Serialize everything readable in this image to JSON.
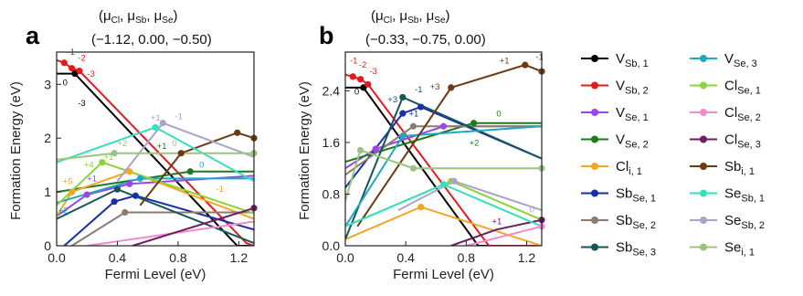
{
  "figure": {
    "panels": [
      {
        "letter": "a",
        "header": {
          "label_open": "(μ",
          "labels": [
            "Cl",
            "Sb",
            "Se"
          ],
          "label_close": ")",
          "values": "(−1.12,  0.00,   −0.50)"
        }
      },
      {
        "letter": "b",
        "header": {
          "label_open": "(μ",
          "labels": [
            "Cl",
            "Sb",
            "Se"
          ],
          "label_close": ")",
          "values": "(−0.33,   −0.75,   0.00)"
        }
      }
    ]
  },
  "legend": {
    "columns": [
      [
        {
          "main": "V",
          "sub": "Sb, 1",
          "color": "#000000"
        },
        {
          "main": "V",
          "sub": "Sb, 2",
          "color": "#e41a1c"
        },
        {
          "main": "V",
          "sub": "Se, 1",
          "color": "#9b45e5"
        },
        {
          "main": "V",
          "sub": "Se, 2",
          "color": "#1e7a1e"
        },
        {
          "main": "Cl",
          "sub": "i, 1",
          "color": "#f5a623"
        },
        {
          "main": "Sb",
          "sub": "Se, 1",
          "color": "#1a2fa6"
        },
        {
          "main": "Sb",
          "sub": "Se, 2",
          "color": "#8c7b70"
        },
        {
          "main": "Sb",
          "sub": "Se, 3",
          "color": "#13575a"
        }
      ],
      [
        {
          "main": "V",
          "sub": "Se, 3",
          "color": "#1fa8c0"
        },
        {
          "main": "Cl",
          "sub": "Se, 1",
          "color": "#8bd43a"
        },
        {
          "main": "Cl",
          "sub": "Se, 2",
          "color": "#f28ad0"
        },
        {
          "main": "Cl",
          "sub": "Se, 3",
          "color": "#6b1f5f"
        },
        {
          "main": "Sb",
          "sub": "i, 1",
          "color": "#6b3a12"
        },
        {
          "main": "Se",
          "sub": "Sb, 1",
          "color": "#35e0bd"
        },
        {
          "main": "Se",
          "sub": "Sb, 2",
          "color": "#a9a3cc"
        },
        {
          "main": "Se",
          "sub": "i, 1",
          "color": "#9cc47d"
        }
      ]
    ]
  },
  "chart_data": [
    {
      "type": "line",
      "panel": "a",
      "xlabel": "Fermi Level (eV)",
      "ylabel": "Formation Energy (eV)",
      "xlim": [
        0,
        1.3
      ],
      "ylim": [
        0,
        3.6
      ],
      "xticks": [
        "0.0",
        "0.4",
        "0.8",
        "1.2"
      ],
      "xtick_values": [
        0,
        0.4,
        0.8,
        1.2
      ],
      "yticks": [
        "0",
        "1",
        "2",
        "3"
      ],
      "ytick_values": [
        0,
        1,
        2,
        3
      ],
      "series": [
        {
          "name": "V_Sb,1",
          "color": "#000000",
          "x": [
            0,
            0.12,
            1.19,
            1.3
          ],
          "y": [
            3.2,
            3.2,
            0,
            0
          ],
          "dots": [
            0.12
          ]
        },
        {
          "name": "V_Sb,2",
          "color": "#e41a1c",
          "x": [
            0,
            0.05,
            0.1,
            0.15,
            1.25,
            1.3
          ],
          "y": [
            3.45,
            3.4,
            3.3,
            3.25,
            0.05,
            0
          ],
          "dots": [
            0.05,
            0.1,
            0.15
          ]
        },
        {
          "name": "V_Se,1",
          "color": "#9b45e5",
          "x": [
            0,
            0.2,
            0.48,
            1.3
          ],
          "y": [
            0.55,
            0.95,
            1.15,
            1.3
          ],
          "dots": [
            0.2,
            0.48
          ]
        },
        {
          "name": "V_Se,2",
          "color": "#1e7a1e",
          "x": [
            0,
            0.88,
            1.3
          ],
          "y": [
            1.0,
            1.38,
            1.38
          ],
          "dots": [
            0.88
          ]
        },
        {
          "name": "Cl_i,1",
          "color": "#f5a623",
          "x": [
            0,
            0.1,
            0.48,
            1.3
          ],
          "y": [
            0.55,
            1.0,
            1.38,
            0.5
          ],
          "dots": [
            0.1,
            0.48
          ]
        },
        {
          "name": "Sb_Se,1",
          "color": "#1a2fa6",
          "x": [
            0.05,
            0.38,
            0.52,
            1.3
          ],
          "y": [
            0,
            0.82,
            0.93,
            0.3
          ],
          "dots": [
            0.38,
            0.52
          ]
        },
        {
          "name": "Sb_Se,2",
          "color": "#8c7b70",
          "x": [
            0.1,
            0.45,
            1.3
          ],
          "y": [
            0,
            0.62,
            0.62
          ],
          "dots": [
            0.45
          ]
        },
        {
          "name": "Sb_Se,3",
          "color": "#13575a",
          "x": [
            0.0,
            0.4,
            1.3
          ],
          "y": [
            0.5,
            1.05,
            0.05
          ],
          "dots": [
            0.4
          ]
        },
        {
          "name": "V_Se,3",
          "color": "#1fa8c0",
          "x": [
            0,
            0.55,
            1.3
          ],
          "y": [
            0.8,
            1.25,
            1.25
          ],
          "dots": [
            0.55
          ]
        },
        {
          "name": "Cl_Se,1",
          "color": "#8bd43a",
          "x": [
            0,
            0.3,
            1.3
          ],
          "y": [
            0.75,
            1.55,
            0.6
          ],
          "dots": [
            0.3
          ]
        },
        {
          "name": "Cl_Se,2",
          "color": "#f28ad0",
          "x": [
            0.2,
            1.3
          ],
          "y": [
            0,
            0.45
          ],
          "dots": []
        },
        {
          "name": "Cl_Se,3",
          "color": "#6b1f5f",
          "x": [
            0.5,
            1.3
          ],
          "y": [
            0,
            0.7
          ],
          "dots": [
            1.3
          ]
        },
        {
          "name": "Sb_i,1",
          "color": "#6b3a12",
          "x": [
            0.55,
            0.82,
            1.19,
            1.3
          ],
          "y": [
            0.75,
            1.72,
            2.1,
            2.0
          ],
          "dots": [
            0.82,
            1.19,
            1.3
          ]
        },
        {
          "name": "Se_Sb,1",
          "color": "#35e0bd",
          "x": [
            0,
            0.65,
            1.3
          ],
          "y": [
            1.55,
            2.2,
            1.2
          ],
          "dots": [
            0.65
          ]
        },
        {
          "name": "Se_Sb,2",
          "color": "#a9a3cc",
          "x": [
            0.4,
            0.7,
            1.3
          ],
          "y": [
            1.2,
            2.28,
            1.65
          ],
          "dots": [
            0.7
          ]
        },
        {
          "name": "Se_i,1",
          "color": "#9cc47d",
          "x": [
            0,
            0.38,
            1.3
          ],
          "y": [
            1.6,
            1.72,
            1.72
          ],
          "dots": [
            0.38,
            1.3
          ]
        }
      ],
      "annotations": [
        {
          "text": "-1",
          "x": 0.07,
          "y": 3.55,
          "color": "#e41a1c"
        },
        {
          "text": "-2",
          "x": 0.14,
          "y": 3.44,
          "color": "#e41a1c"
        },
        {
          "text": "-3",
          "x": 0.2,
          "y": 3.14,
          "color": "#e41a1c"
        },
        {
          "text": "0",
          "x": 0.04,
          "y": 2.98,
          "color": "#000000"
        },
        {
          "text": "-3",
          "x": 0.14,
          "y": 2.6,
          "color": "#000000"
        },
        {
          "text": "+5",
          "x": 0.04,
          "y": 1.15,
          "color": "#f5a623"
        },
        {
          "text": "+1",
          "x": 0.2,
          "y": 1.2,
          "color": "#9b45e5"
        },
        {
          "text": "+4",
          "x": 0.18,
          "y": 1.45,
          "color": "#8bd43a"
        },
        {
          "text": "+1",
          "x": 0.31,
          "y": 1.6,
          "color": "#8bd43a"
        },
        {
          "text": "+2",
          "x": 0.4,
          "y": 1.85,
          "color": "#9cc47d"
        },
        {
          "text": "+2",
          "x": 0.01,
          "y": 0.6,
          "color": "#1fa8c0"
        },
        {
          "text": "+1",
          "x": 0.62,
          "y": 2.33,
          "color": "#a9a3cc"
        },
        {
          "text": "-1",
          "x": 0.78,
          "y": 2.35,
          "color": "#a9a3cc"
        },
        {
          "text": "0",
          "x": 0.76,
          "y": 1.85,
          "color": "#9cc47d"
        },
        {
          "text": "0",
          "x": 0.94,
          "y": 1.45,
          "color": "#1fa8c0"
        },
        {
          "text": "-1",
          "x": 1.05,
          "y": 1.0,
          "color": "#f5a623"
        },
        {
          "text": "+1",
          "x": 0.66,
          "y": 1.8,
          "color": "#1e7a1e"
        }
      ]
    },
    {
      "type": "line",
      "panel": "b",
      "xlabel": "Fermi Level (eV)",
      "ylabel": "Formation Energy (eV)",
      "xlim": [
        0,
        1.3
      ],
      "ylim": [
        0,
        3.0
      ],
      "xticks": [
        "0.0",
        "0.4",
        "0.8",
        "1.2"
      ],
      "xtick_values": [
        0,
        0.4,
        0.8,
        1.2
      ],
      "yticks": [
        "0.0",
        "0.8",
        "1.6",
        "2.4"
      ],
      "ytick_values": [
        0,
        0.8,
        1.6,
        2.4
      ],
      "series": [
        {
          "name": "V_Sb,1",
          "color": "#000000",
          "x": [
            0,
            0.12,
            0.88,
            1.3
          ],
          "y": [
            2.45,
            2.45,
            0,
            0
          ],
          "dots": [
            0.12
          ]
        },
        {
          "name": "V_Sb,2",
          "color": "#e41a1c",
          "x": [
            0,
            0.05,
            0.1,
            0.15,
            0.95,
            1.3
          ],
          "y": [
            2.65,
            2.62,
            2.58,
            2.5,
            0,
            0
          ],
          "dots": [
            0.05,
            0.1,
            0.15
          ]
        },
        {
          "name": "V_Se,1",
          "color": "#9b45e5",
          "x": [
            0,
            0.2,
            0.65,
            1.3
          ],
          "y": [
            1.2,
            1.5,
            1.85,
            1.85
          ],
          "dots": [
            0.2,
            0.65
          ]
        },
        {
          "name": "V_Se,2",
          "color": "#1e7a1e",
          "x": [
            0,
            0.85,
            1.3
          ],
          "y": [
            1.3,
            1.9,
            1.9
          ],
          "dots": [
            0.85
          ]
        },
        {
          "name": "Cl_i,1",
          "color": "#f5a623",
          "x": [
            0,
            0.5,
            1.3
          ],
          "y": [
            0.1,
            0.6,
            0
          ],
          "dots": [
            0.5
          ]
        },
        {
          "name": "Sb_Se,1",
          "color": "#1a2fa6",
          "x": [
            0,
            0.38,
            0.5,
            1.3
          ],
          "y": [
            0.9,
            2.05,
            2.15,
            1.35
          ],
          "dots": [
            0.38,
            0.5
          ]
        },
        {
          "name": "Sb_Se,2",
          "color": "#8c7b70",
          "x": [
            0,
            0.45,
            1.3
          ],
          "y": [
            1.1,
            1.85,
            1.85
          ],
          "dots": [
            0.45
          ]
        },
        {
          "name": "Sb_Se,3",
          "color": "#13575a",
          "x": [
            0,
            0.38,
            1.3
          ],
          "y": [
            0.1,
            2.3,
            1.35
          ],
          "dots": [
            0.38
          ]
        },
        {
          "name": "V_Se,3",
          "color": "#1fa8c0",
          "x": [
            0,
            0.38,
            1.3
          ],
          "y": [
            0.3,
            1.7,
            1.85
          ],
          "dots": [
            0.38
          ]
        },
        {
          "name": "Cl_Se,1",
          "color": "#8bd43a",
          "x": [
            0,
            0.7,
            1.3
          ],
          "y": [
            0.3,
            1.0,
            0.4
          ],
          "dots": [
            0.7
          ]
        },
        {
          "name": "Cl_Se,2",
          "color": "#f28ad0",
          "x": [
            0.8,
            1.3
          ],
          "y": [
            0,
            0.3
          ],
          "dots": [
            1.3
          ]
        },
        {
          "name": "Cl_Se,3",
          "color": "#6b1f5f",
          "x": [
            0.7,
            1.0,
            1.3
          ],
          "y": [
            0,
            0.25,
            0.4
          ],
          "dots": [
            1.3
          ]
        },
        {
          "name": "Sb_i,1",
          "color": "#6b3a12",
          "x": [
            0.08,
            0.7,
            1.19,
            1.3
          ],
          "y": [
            0.3,
            2.45,
            2.8,
            2.7
          ],
          "dots": [
            0.7,
            1.19,
            1.3
          ]
        },
        {
          "name": "Se_Sb,1",
          "color": "#35e0bd",
          "x": [
            0,
            0.65,
            1.3
          ],
          "y": [
            0.3,
            0.95,
            0.3
          ],
          "dots": [
            0.65
          ]
        },
        {
          "name": "Se_Sb,2",
          "color": "#a9a3cc",
          "x": [
            0.35,
            0.72,
            1.3
          ],
          "y": [
            0.55,
            1.0,
            0.55
          ],
          "dots": [
            0.72
          ]
        },
        {
          "name": "Se_i,1",
          "color": "#9cc47d",
          "x": [
            0,
            0.1,
            0.45,
            1.3
          ],
          "y": [
            0.7,
            1.48,
            1.2,
            1.2
          ],
          "dots": [
            0.1,
            0.45,
            1.3
          ]
        }
      ],
      "annotations": [
        {
          "text": "-1",
          "x": 0.03,
          "y": 2.82,
          "color": "#e41a1c"
        },
        {
          "text": "-2",
          "x": 0.09,
          "y": 2.76,
          "color": "#e41a1c"
        },
        {
          "text": "-3",
          "x": 0.16,
          "y": 2.66,
          "color": "#e41a1c"
        },
        {
          "text": "0",
          "x": 0.06,
          "y": 2.34,
          "color": "#000000"
        },
        {
          "text": "+3",
          "x": 0.28,
          "y": 2.22,
          "color": "#13575a"
        },
        {
          "text": "-1",
          "x": 0.46,
          "y": 2.38,
          "color": "#13575a"
        },
        {
          "text": "+1",
          "x": 0.42,
          "y": 2.0,
          "color": "#1a2fa6"
        },
        {
          "text": "+3",
          "x": 0.56,
          "y": 2.42,
          "color": "#6b3a12"
        },
        {
          "text": "+1",
          "x": 1.02,
          "y": 2.82,
          "color": "#6b3a12"
        },
        {
          "text": "-1",
          "x": 1.26,
          "y": 2.88,
          "color": "#6b3a12"
        },
        {
          "text": "0",
          "x": 1.0,
          "y": 2.0,
          "color": "#1e7a1e"
        },
        {
          "text": "+2",
          "x": 0.82,
          "y": 1.55,
          "color": "#1e7a1e"
        },
        {
          "text": "0",
          "x": 1.22,
          "y": 0.52,
          "color": "#a9a3cc"
        },
        {
          "text": "+1",
          "x": 0.97,
          "y": 0.33,
          "color": "#6b1f5f"
        }
      ]
    }
  ]
}
